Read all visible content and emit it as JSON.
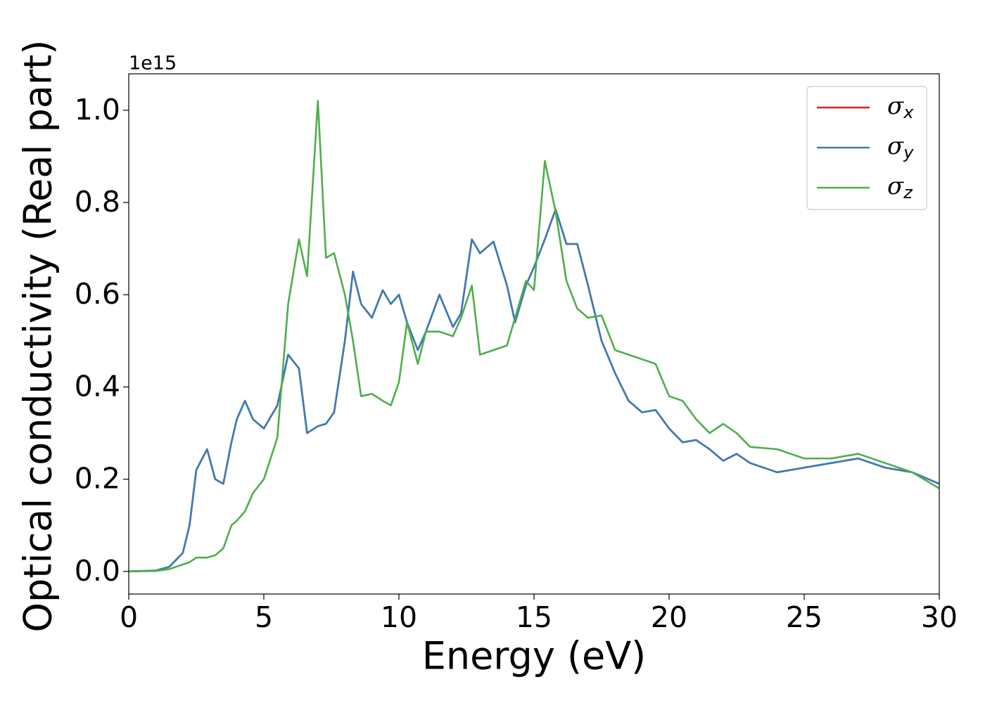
{
  "chart_data": {
    "type": "line",
    "xlabel": "Energy (eV)",
    "ylabel": "Optical conductivity (Real part)",
    "y_offset_label": "1e15",
    "x": [
      0,
      1,
      1.5,
      2,
      2.25,
      2.5,
      2.9,
      3.2,
      3.5,
      3.8,
      4,
      4.3,
      4.6,
      5,
      5.5,
      5.9,
      6.3,
      6.6,
      7.0,
      7.3,
      7.6,
      8.0,
      8.3,
      8.6,
      9,
      9.4,
      9.7,
      10,
      10.3,
      10.7,
      11,
      11.5,
      12,
      12.3,
      12.7,
      13,
      13.5,
      14,
      14.3,
      14.7,
      15,
      15.4,
      15.8,
      16.2,
      16.6,
      17,
      17.5,
      18,
      18.5,
      19,
      19.5,
      20,
      20.5,
      21,
      21.5,
      22,
      22.5,
      23,
      24,
      25,
      26,
      27,
      28,
      29,
      30
    ],
    "series": [
      {
        "name": "σx",
        "color": "#e41a1c",
        "values": [
          0,
          0.002,
          0.01,
          0.04,
          0.1,
          0.22,
          0.265,
          0.2,
          0.19,
          0.28,
          0.33,
          0.37,
          0.33,
          0.31,
          0.36,
          0.47,
          0.44,
          0.3,
          0.315,
          0.32,
          0.345,
          0.5,
          0.65,
          0.58,
          0.55,
          0.61,
          0.58,
          0.6,
          0.54,
          0.48,
          0.52,
          0.6,
          0.53,
          0.56,
          0.72,
          0.69,
          0.715,
          0.62,
          0.54,
          0.62,
          0.66,
          0.72,
          0.785,
          0.71,
          0.71,
          0.62,
          0.5,
          0.43,
          0.37,
          0.345,
          0.35,
          0.31,
          0.28,
          0.285,
          0.265,
          0.24,
          0.255,
          0.235,
          0.215,
          0.225,
          0.235,
          0.245,
          0.225,
          0.215,
          0.19
        ]
      },
      {
        "name": "σy",
        "color": "#377eb8",
        "values": [
          0,
          0.002,
          0.01,
          0.04,
          0.1,
          0.22,
          0.265,
          0.2,
          0.19,
          0.28,
          0.33,
          0.37,
          0.33,
          0.31,
          0.36,
          0.47,
          0.44,
          0.3,
          0.315,
          0.32,
          0.345,
          0.5,
          0.65,
          0.58,
          0.55,
          0.61,
          0.58,
          0.6,
          0.54,
          0.48,
          0.52,
          0.6,
          0.53,
          0.56,
          0.72,
          0.69,
          0.715,
          0.62,
          0.54,
          0.62,
          0.66,
          0.72,
          0.785,
          0.71,
          0.71,
          0.62,
          0.5,
          0.43,
          0.37,
          0.345,
          0.35,
          0.31,
          0.28,
          0.285,
          0.265,
          0.24,
          0.255,
          0.235,
          0.215,
          0.225,
          0.235,
          0.245,
          0.225,
          0.215,
          0.19
        ]
      },
      {
        "name": "σz",
        "color": "#4daf4a",
        "values": [
          0,
          0.001,
          0.005,
          0.015,
          0.02,
          0.03,
          0.03,
          0.035,
          0.05,
          0.1,
          0.11,
          0.13,
          0.17,
          0.2,
          0.29,
          0.58,
          0.72,
          0.64,
          1.02,
          0.68,
          0.69,
          0.6,
          0.5,
          0.38,
          0.385,
          0.37,
          0.36,
          0.41,
          0.54,
          0.45,
          0.52,
          0.52,
          0.51,
          0.55,
          0.62,
          0.47,
          0.48,
          0.49,
          0.55,
          0.63,
          0.61,
          0.89,
          0.78,
          0.63,
          0.57,
          0.55,
          0.555,
          0.48,
          0.47,
          0.46,
          0.45,
          0.38,
          0.37,
          0.33,
          0.3,
          0.32,
          0.3,
          0.27,
          0.265,
          0.245,
          0.245,
          0.255,
          0.235,
          0.215,
          0.18
        ]
      }
    ],
    "xlim": [
      0,
      30
    ],
    "xticks": [
      0,
      5,
      10,
      15,
      20,
      25,
      30
    ],
    "ylim": [
      -0.049,
      1.079
    ],
    "yticks": [
      {
        "value": 0,
        "label": "0.0"
      },
      0.2,
      0.4,
      0.6,
      0.8,
      {
        "value": 1,
        "label": "1.0"
      }
    ],
    "grid": false,
    "legend": "upper right"
  }
}
